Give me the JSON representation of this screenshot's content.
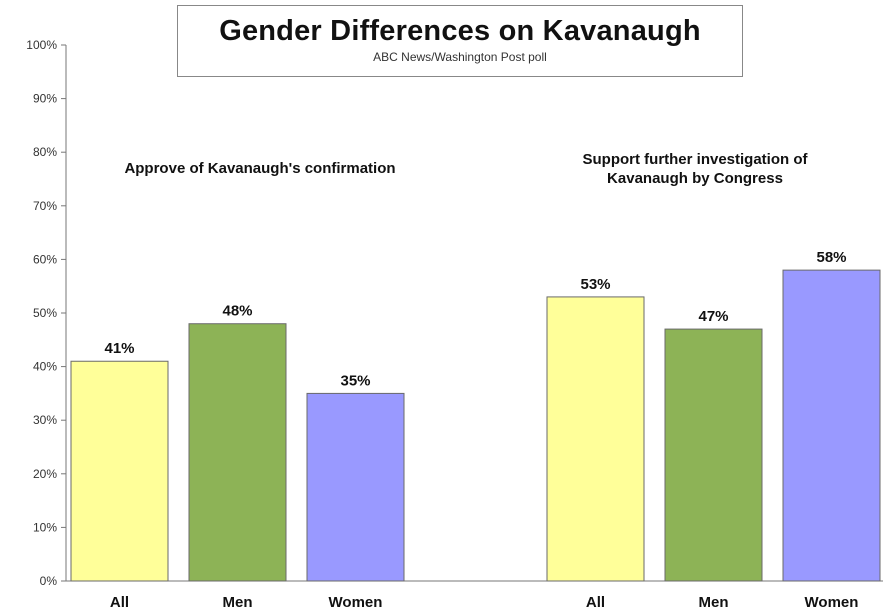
{
  "chart_data": {
    "type": "bar",
    "title": "Gender Differences on Kavanaugh",
    "subtitle": "ABC News/Washington Post poll",
    "ylim": [
      0,
      100
    ],
    "yticks": [
      "0%",
      "10%",
      "20%",
      "30%",
      "40%",
      "50%",
      "60%",
      "70%",
      "80%",
      "90%",
      "100%"
    ],
    "grid": false,
    "groups": [
      {
        "title": "Approve of Kavanaugh's confirmation",
        "categories": [
          "All",
          "Men",
          "Women"
        ],
        "values": [
          41,
          48,
          35
        ],
        "labels": [
          "41%",
          "48%",
          "35%"
        ]
      },
      {
        "title": "Support further investigation of Kavanaugh by Congress",
        "categories": [
          "All",
          "Men",
          "Women"
        ],
        "values": [
          53,
          47,
          58
        ],
        "labels": [
          "53%",
          "47%",
          "58%"
        ]
      }
    ],
    "colors": {
      "All": "#FFFF99",
      "Men": "#8DB356",
      "Women": "#9999FF"
    }
  }
}
